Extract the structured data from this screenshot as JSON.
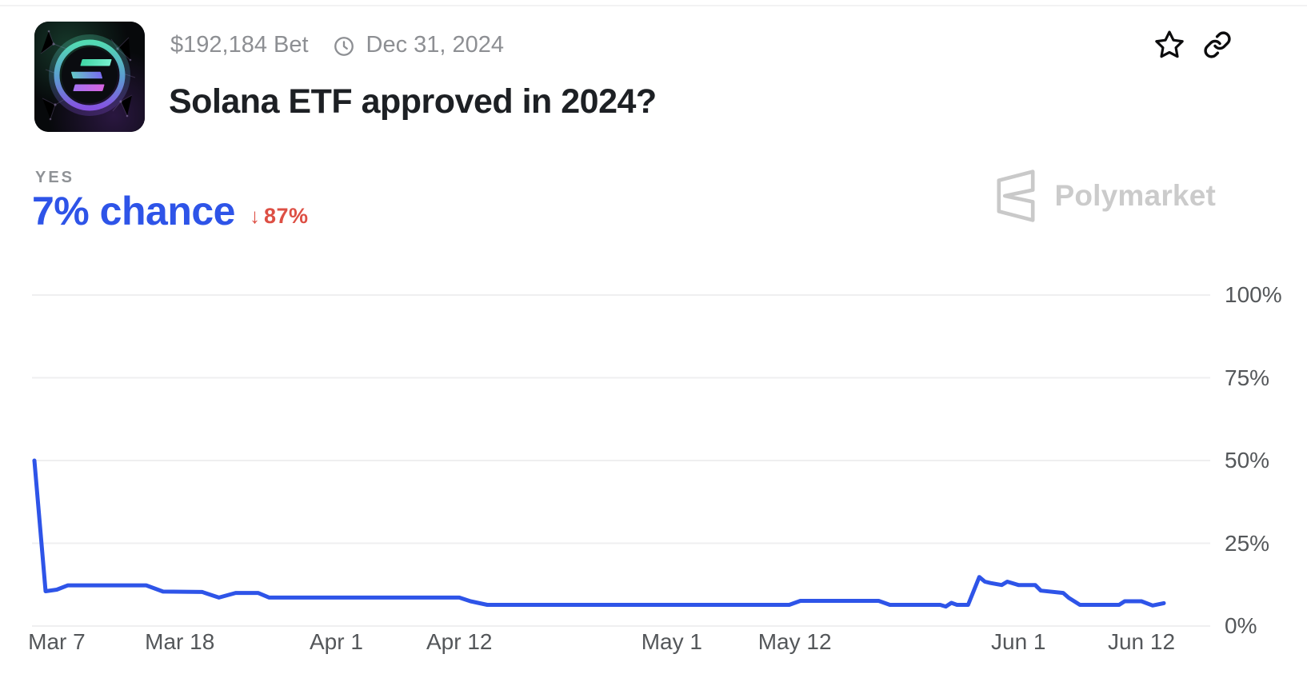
{
  "header": {
    "bet_amount": "$192,184 Bet",
    "end_date": "Dec 31, 2024",
    "title": "Solana ETF approved in 2024?"
  },
  "outcome": {
    "label": "YES",
    "chance": "7% chance",
    "change_arrow": "↓",
    "change": "87%",
    "change_direction": "down"
  },
  "watermark": {
    "brand": "Polymarket"
  },
  "colors": {
    "accent_blue": "#2e54e8",
    "change_red": "#dd4f44",
    "title_dark": "#1d2024",
    "meta_gray": "#8d8f93",
    "axis_gray": "#54575a",
    "watermark_gray": "#cbcbcb",
    "gridline_gray": "#efeff0"
  },
  "chart_data": {
    "type": "line",
    "series_name": "YES probability",
    "unit": "%",
    "ylim": [
      0,
      100
    ],
    "grid": "horizontal",
    "legend": "none",
    "x_range": [
      "Mar 5, 2024",
      "Jun 14, 2024"
    ],
    "day_span": 101,
    "line_color": "#2e54e8",
    "current": {
      "label": "YES",
      "value": 7
    },
    "yticks": [
      {
        "label": "0%",
        "value": 0
      },
      {
        "label": "25%",
        "value": 25
      },
      {
        "label": "50%",
        "value": 50
      },
      {
        "label": "75%",
        "value": 75
      },
      {
        "label": "100%",
        "value": 100
      }
    ],
    "xticks": [
      {
        "label": "Mar 7",
        "day": 2
      },
      {
        "label": "Mar 18",
        "day": 13
      },
      {
        "label": "Apr 1",
        "day": 27
      },
      {
        "label": "Apr 12",
        "day": 38
      },
      {
        "label": "May 1",
        "day": 57
      },
      {
        "label": "May 12",
        "day": 68
      },
      {
        "label": "Jun 1",
        "day": 88
      },
      {
        "label": "Jun 12",
        "day": 99
      }
    ],
    "points": [
      {
        "date": "Mar 5",
        "day": 0,
        "value": 50
      },
      {
        "date": "Mar 6",
        "day": 1,
        "value": 10.5
      },
      {
        "date": "Mar 7",
        "day": 2,
        "value": 11
      },
      {
        "date": "Mar 8",
        "day": 3,
        "value": 12.3
      },
      {
        "date": "Mar 15",
        "day": 10,
        "value": 12.3
      },
      {
        "date": "Mar 17",
        "day": 11.5,
        "value": 10.4
      },
      {
        "date": "Mar 20",
        "day": 15,
        "value": 10.3
      },
      {
        "date": "Mar 21",
        "day": 16.5,
        "value": 8.6
      },
      {
        "date": "Mar 23",
        "day": 18,
        "value": 10
      },
      {
        "date": "Mar 25",
        "day": 20,
        "value": 10
      },
      {
        "date": "Mar 26",
        "day": 21,
        "value": 8.6
      },
      {
        "date": "Apr 12",
        "day": 38,
        "value": 8.6
      },
      {
        "date": "Apr 13",
        "day": 39,
        "value": 7.5
      },
      {
        "date": "Apr 14",
        "day": 40.5,
        "value": 6.4
      },
      {
        "date": "May 11",
        "day": 67.5,
        "value": 6.4
      },
      {
        "date": "May 12",
        "day": 68.5,
        "value": 7.6
      },
      {
        "date": "May 20",
        "day": 75.5,
        "value": 7.6
      },
      {
        "date": "May 21",
        "day": 76.5,
        "value": 6.4
      },
      {
        "date": "May 25",
        "day": 81,
        "value": 6.4
      },
      {
        "date": "May 26",
        "day": 81.5,
        "value": 5.9
      },
      {
        "date": "May 26",
        "day": 82,
        "value": 7
      },
      {
        "date": "May 27",
        "day": 82.5,
        "value": 6.4
      },
      {
        "date": "May 28",
        "day": 83.5,
        "value": 6.4
      },
      {
        "date": "May 29",
        "day": 84.5,
        "value": 14.8
      },
      {
        "date": "May 30",
        "day": 85,
        "value": 13.4
      },
      {
        "date": "May 30",
        "day": 85.5,
        "value": 13
      },
      {
        "date": "May 31",
        "day": 86.5,
        "value": 12.4
      },
      {
        "date": "Jun 1",
        "day": 87,
        "value": 13.4
      },
      {
        "date": "Jun 2",
        "day": 88,
        "value": 12.4
      },
      {
        "date": "Jun 3",
        "day": 89.5,
        "value": 12.4
      },
      {
        "date": "Jun 4",
        "day": 90,
        "value": 10.7
      },
      {
        "date": "Jun 6",
        "day": 92,
        "value": 10
      },
      {
        "date": "Jun 6",
        "day": 92.5,
        "value": 8.5
      },
      {
        "date": "Jun 7",
        "day": 93.5,
        "value": 6.4
      },
      {
        "date": "Jun 11",
        "day": 97,
        "value": 6.4
      },
      {
        "date": "Jun 11",
        "day": 97.5,
        "value": 7.5
      },
      {
        "date": "Jun 13",
        "day": 99,
        "value": 7.5
      },
      {
        "date": "Jun 14",
        "day": 100,
        "value": 6.2
      },
      {
        "date": "Jun 14",
        "day": 101,
        "value": 6.9
      }
    ]
  }
}
